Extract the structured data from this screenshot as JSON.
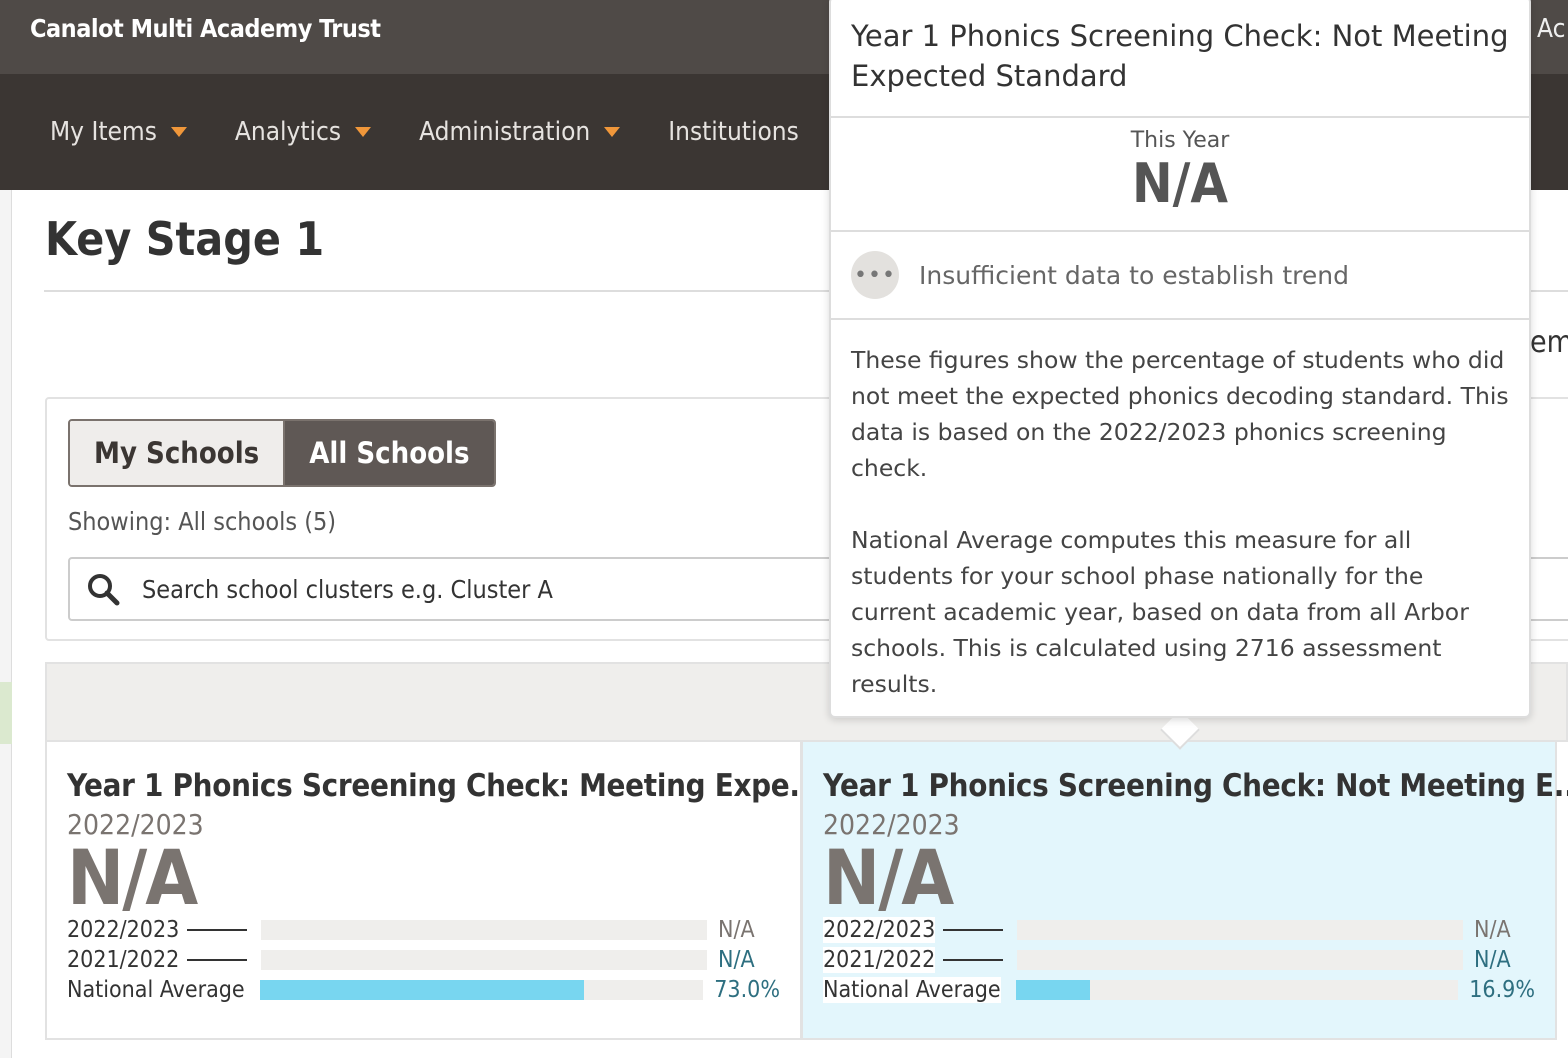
{
  "header": {
    "brand": "Canalot Multi Academy Trust",
    "right_fragment": "r Ac"
  },
  "nav": [
    {
      "label": "My Items",
      "dropdown": true
    },
    {
      "label": "Analytics",
      "dropdown": true
    },
    {
      "label": "Administration",
      "dropdown": true
    },
    {
      "label": "Institutions",
      "dropdown": false
    }
  ],
  "page": {
    "title": "Key Stage 1",
    "bg_fragment": "em"
  },
  "filter": {
    "toggle": [
      {
        "label": "My Schools",
        "active": false
      },
      {
        "label": "All Schools",
        "active": true
      }
    ],
    "showing": "Showing: All schools (5)",
    "search_placeholder": "Search school clusters e.g. Cluster A"
  },
  "cards": [
    {
      "title": "Year 1 Phonics Screening Check: Meeting Expe...",
      "year": "2022/2023",
      "value": "N/A",
      "selected": false,
      "rows": [
        {
          "label": "2022/2023",
          "value": "N/A",
          "percent": 0
        },
        {
          "label": "2021/2022",
          "value": "N/A",
          "percent": 0
        },
        {
          "label": "National Average",
          "value": "73.0%",
          "percent": 73.0
        }
      ]
    },
    {
      "title": "Year 1 Phonics Screening Check: Not Meeting E...",
      "year": "2022/2023",
      "value": "N/A",
      "selected": true,
      "rows": [
        {
          "label": "2022/2023",
          "value": "N/A",
          "percent": 0
        },
        {
          "label": "2021/2022",
          "value": "N/A",
          "percent": 0
        },
        {
          "label": "National Average",
          "value": "16.9%",
          "percent": 16.9
        }
      ]
    }
  ],
  "popover": {
    "title": "Year 1 Phonics Screening Check: Not Meeting Expected Standard",
    "this_year_label": "This Year",
    "this_year_value": "N/A",
    "trend_icon": "ellipsis-icon",
    "trend": "Insufficient data to establish trend",
    "desc1": "These figures show the percentage of students who did not meet the expected phonics decoding standard. This data is based on the 2022/2023 phonics screening check.",
    "desc2": "National Average computes this measure for all students for your school phase nationally for the current academic year, based on data from all Arbor schools. This is calculated using 2716 assessment results."
  },
  "colors": {
    "accent_caret": "#f0973a",
    "bar_fill": "#78d6f0",
    "selected_card": "#e3f6fc",
    "topbar": "#4f4a47",
    "nav": "#3b3633"
  }
}
